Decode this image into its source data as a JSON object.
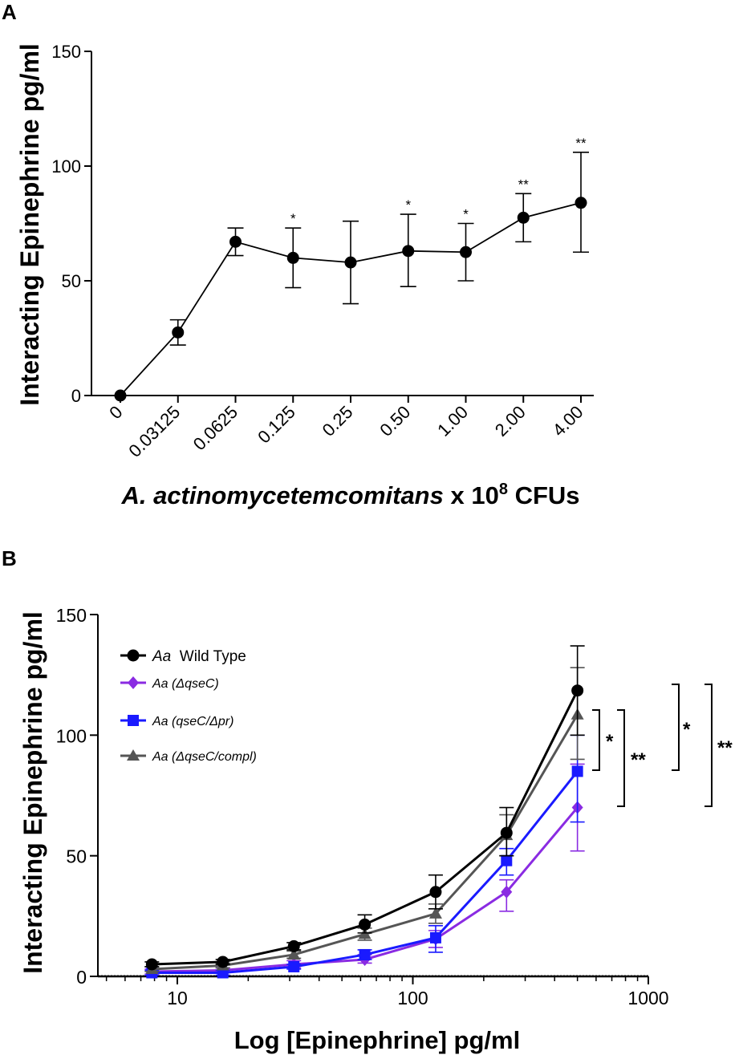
{
  "chart_data": [
    {
      "panel": "A",
      "type": "line",
      "ylabel": "Interacting Epinephrine pg/ml",
      "xlabel_italic": "A. actinomycetemcomitans",
      "xlabel_rest": " x 10",
      "xlabel_sup": "8",
      "xlabel_end": " CFUs",
      "ylim": [
        0,
        150
      ],
      "yticks": [
        "0",
        "50",
        "100",
        "150"
      ],
      "categories": [
        "0",
        "0.03125",
        "0.0625",
        "0.125",
        "0.25",
        "0.50",
        "1.00",
        "2.00",
        "4.00"
      ],
      "values": [
        0,
        27.5,
        67,
        60,
        58,
        63,
        62.5,
        77.5,
        84
      ],
      "err_upper": [
        0,
        33,
        73,
        73,
        76,
        79,
        75,
        88,
        106
      ],
      "err_lower": [
        0,
        22,
        61,
        47,
        40,
        47.5,
        50,
        67,
        62.5
      ],
      "significance": [
        "",
        "",
        "",
        "*",
        "",
        "*",
        "*",
        "**",
        "**"
      ]
    },
    {
      "panel": "B",
      "type": "line",
      "ylabel": "Interacting Epinephrine pg/ml",
      "xlabel": "Log [Epinephrine] pg/ml",
      "xscale": "log",
      "xlim": [
        5,
        1000
      ],
      "ylim": [
        0,
        150
      ],
      "yticks": [
        "0",
        "50",
        "100",
        "150"
      ],
      "xticks": [
        "10",
        "100",
        "1000"
      ],
      "x": [
        7.8,
        15.6,
        31.25,
        62.5,
        125,
        250,
        500
      ],
      "series": [
        {
          "name_italic": "Aa",
          "name_rest": "  Wild Type",
          "color": "#000000",
          "marker": "circle",
          "values": [
            5,
            6,
            12.5,
            21.5,
            35,
            59.5,
            118.5
          ],
          "err_upper": [
            6,
            7,
            14,
            25.5,
            42,
            70,
            137
          ],
          "err_lower": [
            4,
            5,
            11,
            18,
            28,
            50,
            100
          ]
        },
        {
          "name_italic": "Aa (ΔqseC)",
          "name_rest": "",
          "color": "#8a2be2",
          "marker": "diamond",
          "values": [
            2,
            2.5,
            5,
            7,
            15.5,
            35,
            70
          ],
          "err_upper": [
            3,
            3.5,
            6.5,
            9,
            19,
            40,
            88
          ],
          "err_lower": [
            1,
            1.5,
            3.5,
            5.5,
            12,
            27,
            52
          ]
        },
        {
          "name_italic": "Aa (qseC/Δpr)",
          "name_rest": "",
          "color": "#1a1aff",
          "marker": "square",
          "values": [
            1.5,
            1.5,
            4,
            9,
            16,
            48,
            85
          ],
          "err_upper": [
            2.5,
            2.5,
            5,
            11,
            21,
            53,
            100
          ],
          "err_lower": [
            0.5,
            0.5,
            3,
            7,
            10,
            42,
            64
          ]
        },
        {
          "name_italic": "Aa (ΔqseC/compl)",
          "name_rest": "",
          "color": "#555555",
          "marker": "triangle",
          "values": [
            3,
            4.5,
            9,
            17.5,
            26,
            58.5,
            108.5
          ],
          "err_upper": [
            4,
            5.5,
            10.5,
            20,
            30,
            67,
            128
          ],
          "err_lower": [
            2,
            3.5,
            7.5,
            15,
            22,
            50,
            90
          ]
        }
      ],
      "significance_brackets": [
        "*",
        "**",
        "*",
        "**"
      ]
    }
  ]
}
